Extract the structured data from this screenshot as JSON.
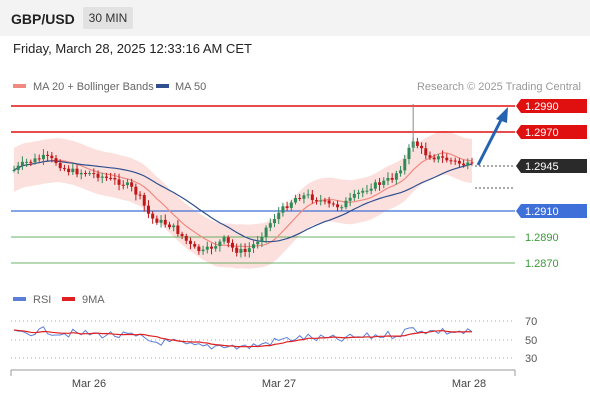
{
  "header": {
    "symbol": "GBP/USD",
    "timeframe": "30 MIN"
  },
  "timestamp": "Friday, March 28, 2025 12:33:16 AM CET",
  "legend": [
    {
      "label": "MA 20 + Bollinger Bands",
      "color": "#f08a80"
    },
    {
      "label": "MA 50",
      "color": "#2f4f8f"
    }
  ],
  "copyright": "Research © 2025 Trading Central",
  "levels": [
    {
      "label": "1.2990",
      "value": 1.299,
      "kind": "resistance"
    },
    {
      "label": "1.2970",
      "value": 1.297,
      "kind": "resistance"
    },
    {
      "label": "1.2945",
      "value": 1.2945,
      "kind": "current"
    },
    {
      "label": "1.2910",
      "value": 1.291,
      "kind": "pivot"
    },
    {
      "label": "1.2890",
      "value": 1.289,
      "kind": "support"
    },
    {
      "label": "1.2870",
      "value": 1.287,
      "kind": "support"
    }
  ],
  "rsi": {
    "legend": [
      {
        "label": "RSI",
        "color": "#5b7fd8"
      },
      {
        "label": "9MA",
        "color": "#e02020"
      }
    ],
    "ticks": [
      "70",
      "50",
      "30"
    ]
  },
  "xaxis": {
    "labels": [
      "Mar 26",
      "Mar 27",
      "Mar 28"
    ]
  },
  "colors": {
    "bull": "#2e8b57",
    "bear": "#c0181a",
    "resistance": "#e01010",
    "pivot": "#3f6fd8",
    "support": "#3a9a3a",
    "arrow": "#2563b0"
  },
  "chart_data": {
    "type": "candlestick",
    "price_range": [
      1.2862,
      1.3001
    ],
    "resistances": [
      1.299,
      1.297
    ],
    "pivot": 1.291,
    "supports": [
      1.289,
      1.287
    ],
    "last_price": 1.2945,
    "rsi_levels": [
      70,
      50,
      30
    ],
    "x_labels": [
      "Mar 26",
      "Mar 27",
      "Mar 28"
    ]
  }
}
